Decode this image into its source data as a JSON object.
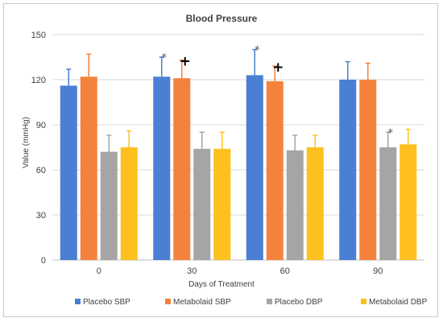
{
  "chart_data": {
    "type": "bar",
    "title": "Blood Pressure",
    "xlabel": "Days of Treatment",
    "ylabel": "Value (mmHg)",
    "ylim": [
      0,
      150
    ],
    "yticks": [
      "0",
      "30",
      "60",
      "90",
      "120",
      "150"
    ],
    "categories": [
      "0",
      "30",
      "60",
      "90"
    ],
    "grid": true,
    "legend_position": "bottom",
    "series": [
      {
        "name": "Placebo SBP",
        "color": "#4a7fd4",
        "values": [
          116,
          122,
          123,
          120
        ],
        "error": [
          11,
          13,
          17,
          12
        ]
      },
      {
        "name": "Metabolaid SBP",
        "color": "#f5823c",
        "values": [
          122,
          121,
          119,
          120
        ],
        "error": [
          15,
          12,
          10,
          11
        ]
      },
      {
        "name": "Placebo DBP",
        "color": "#a5a5a5",
        "values": [
          72,
          74,
          73,
          75
        ],
        "error": [
          11,
          11,
          10,
          10
        ]
      },
      {
        "name": "Metabolaid DBP",
        "color": "#fdc01e",
        "values": [
          75,
          74,
          75,
          77
        ],
        "error": [
          11,
          11,
          8,
          10
        ]
      }
    ],
    "annotations": [
      {
        "text": "*",
        "category": "30",
        "series": "Placebo SBP"
      },
      {
        "text": "+",
        "category": "30",
        "series": "Metabolaid SBP"
      },
      {
        "text": "*",
        "category": "60",
        "series": "Placebo SBP"
      },
      {
        "text": "+",
        "category": "60",
        "series": "Metabolaid SBP"
      },
      {
        "text": "*",
        "category": "90",
        "series": "Placebo DBP"
      }
    ]
  }
}
